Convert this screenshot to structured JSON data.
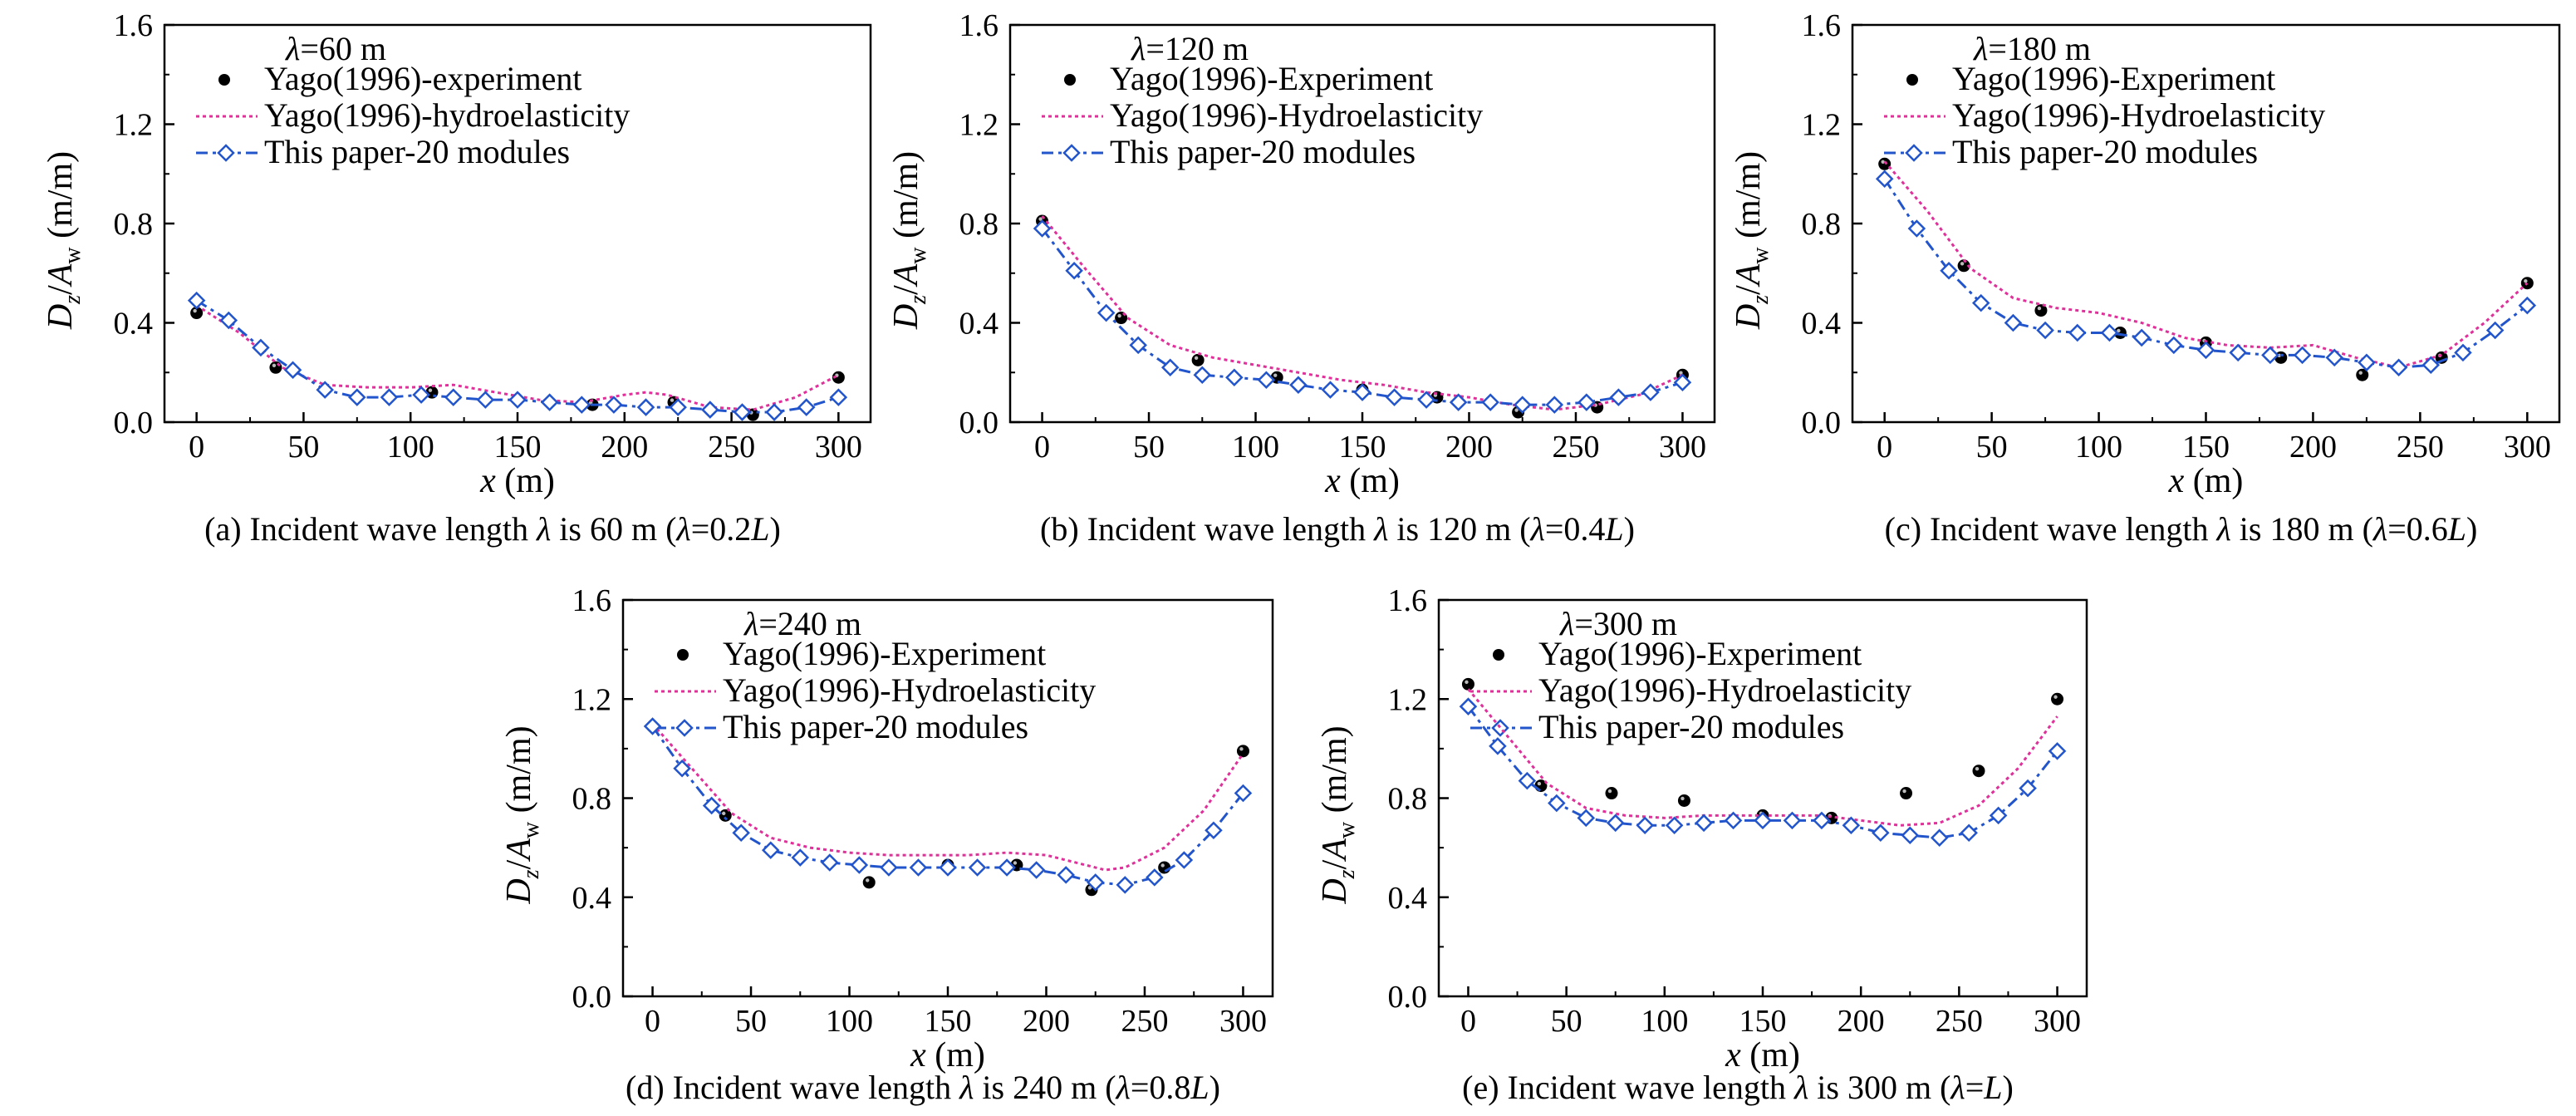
{
  "chart_data": [
    {
      "type": "line",
      "panel": "a",
      "annotation": {
        "symbol": "λ",
        "value": "=60 m"
      },
      "caption": {
        "prefix": "(a) Incident wave length ",
        "sym": "λ",
        "mid": " is 60 m (",
        "sym2": "λ",
        "eq": "=0.2",
        "L": "L",
        "tail": ")"
      },
      "xlabel": {
        "var": "x",
        "unit": " (m)"
      },
      "ylabel": {
        "D": "D",
        "z": "z",
        "slash": "/",
        "A": "A",
        "w": "w",
        "unit": " (m/m)"
      },
      "xlim": [
        -15,
        315
      ],
      "ylim": [
        0,
        1.6
      ],
      "xticks": [
        "0",
        "50",
        "100",
        "150",
        "200",
        "250",
        "300"
      ],
      "yticks": [
        "0.0",
        "0.4",
        "0.8",
        "1.2",
        "1.6"
      ],
      "grid": false,
      "legend_position": "top-left",
      "series": [
        {
          "name": "Yago(1996)-experiment",
          "kind": "scatter",
          "color": "#000000",
          "x": [
            0,
            37,
            110,
            185,
            223,
            260,
            300
          ],
          "y": [
            0.44,
            0.22,
            0.12,
            0.07,
            0.08,
            0.03,
            0.18
          ]
        },
        {
          "name": "Yago(1996)-hydroelasticity",
          "kind": "dotted-line",
          "color": "#e0309a",
          "x": [
            0,
            20,
            40,
            60,
            80,
            100,
            120,
            140,
            160,
            180,
            200,
            210,
            220,
            240,
            260,
            280,
            300
          ],
          "y": [
            0.47,
            0.36,
            0.22,
            0.15,
            0.14,
            0.14,
            0.15,
            0.12,
            0.09,
            0.08,
            0.11,
            0.12,
            0.11,
            0.06,
            0.05,
            0.1,
            0.19
          ]
        },
        {
          "name": "This paper-20 modules",
          "kind": "dashdot-diamond",
          "color": "#2255cc",
          "x": [
            0,
            15,
            30,
            45,
            60,
            75,
            90,
            105,
            120,
            135,
            150,
            165,
            180,
            195,
            210,
            225,
            240,
            255,
            270,
            285,
            300
          ],
          "y": [
            0.49,
            0.41,
            0.3,
            0.21,
            0.13,
            0.1,
            0.1,
            0.11,
            0.1,
            0.09,
            0.09,
            0.08,
            0.07,
            0.07,
            0.06,
            0.06,
            0.05,
            0.04,
            0.04,
            0.06,
            0.1
          ]
        }
      ]
    },
    {
      "type": "line",
      "panel": "b",
      "annotation": {
        "symbol": "λ",
        "value": "=120 m"
      },
      "caption": {
        "prefix": "(b) Incident wave length ",
        "sym": "λ",
        "mid": " is 120 m (",
        "sym2": "λ",
        "eq": "=0.4",
        "L": "L",
        "tail": ")"
      },
      "xlabel": {
        "var": "x",
        "unit": " (m)"
      },
      "ylabel": {
        "D": "D",
        "z": "z",
        "slash": "/",
        "A": "A",
        "w": "w",
        "unit": " (m/m)"
      },
      "xlim": [
        -15,
        315
      ],
      "ylim": [
        0,
        1.6
      ],
      "xticks": [
        "0",
        "50",
        "100",
        "150",
        "200",
        "250",
        "300"
      ],
      "yticks": [
        "0.0",
        "0.4",
        "0.8",
        "1.2",
        "1.6"
      ],
      "grid": false,
      "legend_position": "top-left",
      "series": [
        {
          "name": "Yago(1996)-Experiment",
          "kind": "scatter",
          "color": "#000000",
          "x": [
            0,
            37,
            73,
            110,
            150,
            185,
            223,
            260,
            300
          ],
          "y": [
            0.81,
            0.42,
            0.25,
            0.18,
            0.13,
            0.1,
            0.04,
            0.06,
            0.19
          ]
        },
        {
          "name": "Yago(1996)-Hydroelasticity",
          "kind": "dotted-line",
          "color": "#e0309a",
          "x": [
            0,
            20,
            40,
            60,
            80,
            100,
            120,
            140,
            160,
            180,
            200,
            220,
            240,
            260,
            280,
            300
          ],
          "y": [
            0.83,
            0.62,
            0.42,
            0.31,
            0.26,
            0.23,
            0.2,
            0.17,
            0.15,
            0.12,
            0.1,
            0.07,
            0.05,
            0.07,
            0.11,
            0.19
          ]
        },
        {
          "name": "This paper-20 modules",
          "kind": "dashdot-diamond",
          "color": "#2255cc",
          "x": [
            0,
            15,
            30,
            45,
            60,
            75,
            90,
            105,
            120,
            135,
            150,
            165,
            180,
            195,
            210,
            225,
            240,
            255,
            270,
            285,
            300
          ],
          "y": [
            0.78,
            0.61,
            0.44,
            0.31,
            0.22,
            0.19,
            0.18,
            0.17,
            0.15,
            0.13,
            0.12,
            0.1,
            0.09,
            0.08,
            0.08,
            0.07,
            0.07,
            0.08,
            0.1,
            0.12,
            0.16
          ]
        }
      ]
    },
    {
      "type": "line",
      "panel": "c",
      "annotation": {
        "symbol": "λ",
        "value": "=180 m"
      },
      "caption": {
        "prefix": "(c) Incident wave length ",
        "sym": "λ",
        "mid": " is 180 m (",
        "sym2": "λ",
        "eq": "=0.6",
        "L": "L",
        "tail": ")"
      },
      "xlabel": {
        "var": "x",
        "unit": " (m)"
      },
      "ylabel": {
        "D": "D",
        "z": "z",
        "slash": "/",
        "A": "A",
        "w": "w",
        "unit": " (m/m)"
      },
      "xlim": [
        -15,
        315
      ],
      "ylim": [
        0,
        1.6
      ],
      "xticks": [
        "0",
        "50",
        "100",
        "150",
        "200",
        "250",
        "300"
      ],
      "yticks": [
        "0.0",
        "0.4",
        "0.8",
        "1.2",
        "1.6"
      ],
      "grid": false,
      "legend_position": "top-left",
      "series": [
        {
          "name": "Yago(1996)-Experiment",
          "kind": "scatter",
          "color": "#000000",
          "x": [
            0,
            37,
            73,
            110,
            150,
            185,
            223,
            260,
            300
          ],
          "y": [
            1.04,
            0.63,
            0.45,
            0.36,
            0.32,
            0.26,
            0.19,
            0.26,
            0.56
          ]
        },
        {
          "name": "Yago(1996)-Hydroelasticity",
          "kind": "dotted-line",
          "color": "#e0309a",
          "x": [
            0,
            20,
            40,
            60,
            80,
            100,
            120,
            140,
            160,
            180,
            200,
            220,
            240,
            260,
            280,
            300
          ],
          "y": [
            1.05,
            0.85,
            0.62,
            0.5,
            0.46,
            0.44,
            0.4,
            0.34,
            0.31,
            0.3,
            0.31,
            0.26,
            0.22,
            0.27,
            0.4,
            0.56
          ]
        },
        {
          "name": "This paper-20 modules",
          "kind": "dashdot-diamond",
          "color": "#2255cc",
          "x": [
            0,
            15,
            30,
            45,
            60,
            75,
            90,
            105,
            120,
            135,
            150,
            165,
            180,
            195,
            210,
            225,
            240,
            255,
            270,
            285,
            300
          ],
          "y": [
            0.98,
            0.78,
            0.61,
            0.48,
            0.4,
            0.37,
            0.36,
            0.36,
            0.34,
            0.31,
            0.29,
            0.28,
            0.27,
            0.27,
            0.26,
            0.24,
            0.22,
            0.23,
            0.28,
            0.37,
            0.47
          ]
        }
      ]
    },
    {
      "type": "line",
      "panel": "d",
      "annotation": {
        "symbol": "λ",
        "value": "=240 m"
      },
      "caption": {
        "prefix": "(d) Incident wave length ",
        "sym": "λ",
        "mid": " is 240 m (",
        "sym2": "λ",
        "eq": "=0.8",
        "L": "L",
        "tail": ")"
      },
      "xlabel": {
        "var": "x",
        "unit": " (m)"
      },
      "ylabel": {
        "D": "D",
        "z": "z",
        "slash": "/",
        "A": "A",
        "w": "w",
        "unit": " (m/m)"
      },
      "xlim": [
        -15,
        315
      ],
      "ylim": [
        0,
        1.6
      ],
      "xticks": [
        "0",
        "50",
        "100",
        "150",
        "200",
        "250",
        "300"
      ],
      "yticks": [
        "0.0",
        "0.4",
        "0.8",
        "1.2",
        "1.6"
      ],
      "grid": false,
      "legend_position": "top-left",
      "series": [
        {
          "name": "Yago(1996)-Experiment",
          "kind": "scatter",
          "color": "#000000",
          "x": [
            0,
            37,
            110,
            150,
            185,
            223,
            260,
            300
          ],
          "y": [
            1.09,
            0.73,
            0.46,
            0.53,
            0.53,
            0.43,
            0.52,
            0.99
          ]
        },
        {
          "name": "Yago(1996)-Hydroelasticity",
          "kind": "dotted-line",
          "color": "#e0309a",
          "x": [
            0,
            20,
            40,
            60,
            80,
            100,
            120,
            140,
            160,
            180,
            200,
            220,
            230,
            240,
            260,
            280,
            300
          ],
          "y": [
            1.1,
            0.92,
            0.74,
            0.64,
            0.6,
            0.58,
            0.57,
            0.57,
            0.57,
            0.58,
            0.57,
            0.53,
            0.51,
            0.52,
            0.6,
            0.75,
            0.98
          ]
        },
        {
          "name": "This paper-20 modules",
          "kind": "dashdot-diamond",
          "color": "#2255cc",
          "x": [
            0,
            15,
            30,
            45,
            60,
            75,
            90,
            105,
            120,
            135,
            150,
            165,
            180,
            195,
            210,
            225,
            240,
            255,
            270,
            285,
            300
          ],
          "y": [
            1.09,
            0.92,
            0.77,
            0.66,
            0.59,
            0.56,
            0.54,
            0.53,
            0.52,
            0.52,
            0.52,
            0.52,
            0.52,
            0.51,
            0.49,
            0.46,
            0.45,
            0.48,
            0.55,
            0.67,
            0.82
          ]
        }
      ]
    },
    {
      "type": "line",
      "panel": "e",
      "annotation": {
        "symbol": "λ",
        "value": "=300 m"
      },
      "caption": {
        "prefix": "(e) Incident wave length ",
        "sym": "λ",
        "mid": " is 300 m (",
        "sym2": "λ",
        "eq": "=",
        "L": "L",
        "tail": ")"
      },
      "xlabel": {
        "var": "x",
        "unit": " (m)"
      },
      "ylabel": {
        "D": "D",
        "z": "z",
        "slash": "/",
        "A": "A",
        "w": "w",
        "unit": " (m/m)"
      },
      "xlim": [
        -15,
        315
      ],
      "ylim": [
        0,
        1.6
      ],
      "xticks": [
        "0",
        "50",
        "100",
        "150",
        "200",
        "250",
        "300"
      ],
      "yticks": [
        "0.0",
        "0.4",
        "0.8",
        "1.2",
        "1.6"
      ],
      "grid": false,
      "legend_position": "top-left",
      "series": [
        {
          "name": "Yago(1996)-Experiment",
          "kind": "scatter",
          "color": "#000000",
          "x": [
            0,
            37,
            73,
            110,
            150,
            185,
            223,
            260,
            300
          ],
          "y": [
            1.26,
            0.85,
            0.82,
            0.79,
            0.73,
            0.72,
            0.82,
            0.91,
            1.2
          ]
        },
        {
          "name": "Yago(1996)-Hydroelasticity",
          "kind": "dotted-line",
          "color": "#e0309a",
          "x": [
            0,
            20,
            40,
            60,
            80,
            100,
            120,
            140,
            160,
            180,
            200,
            220,
            240,
            260,
            280,
            300
          ],
          "y": [
            1.24,
            1.05,
            0.86,
            0.76,
            0.73,
            0.72,
            0.73,
            0.73,
            0.73,
            0.73,
            0.71,
            0.69,
            0.7,
            0.77,
            0.92,
            1.13
          ]
        },
        {
          "name": "This paper-20 modules",
          "kind": "dashdot-diamond",
          "color": "#2255cc",
          "x": [
            0,
            15,
            30,
            45,
            60,
            75,
            90,
            105,
            120,
            135,
            150,
            165,
            180,
            195,
            210,
            225,
            240,
            255,
            270,
            285,
            300
          ],
          "y": [
            1.17,
            1.01,
            0.87,
            0.78,
            0.72,
            0.7,
            0.69,
            0.69,
            0.7,
            0.71,
            0.71,
            0.71,
            0.71,
            0.69,
            0.66,
            0.65,
            0.64,
            0.66,
            0.73,
            0.84,
            0.99
          ]
        }
      ]
    }
  ]
}
